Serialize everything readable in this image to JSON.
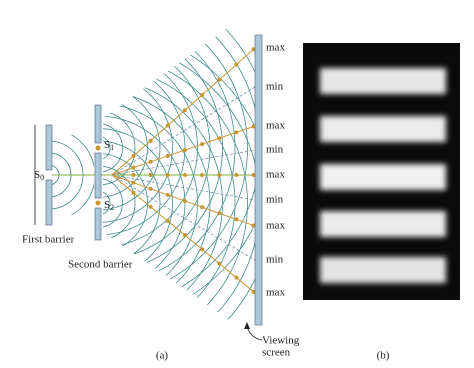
{
  "figure": {
    "sources": [
      {
        "letter": "S",
        "subscript": "0"
      },
      {
        "letter": "S",
        "subscript": "1"
      },
      {
        "letter": "S",
        "subscript": "2"
      }
    ],
    "first_barrier_label": "First barrier",
    "second_barrier_label": "Second barrier",
    "screen_labels": [
      "max",
      "min",
      "max",
      "min",
      "max",
      "min",
      "max",
      "min",
      "max"
    ],
    "screen_caption": [
      "Viewing",
      "screen"
    ],
    "panel_labels": [
      "(a)",
      "(b)"
    ]
  }
}
